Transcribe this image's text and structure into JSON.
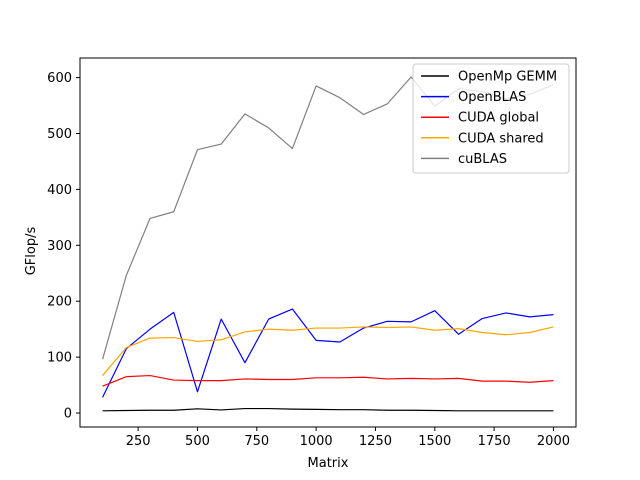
{
  "chart_data": {
    "type": "line",
    "title": "",
    "xlabel": "Matrix",
    "ylabel": "GFlop/s",
    "xlim": [
      5,
      2095
    ],
    "ylim": [
      -25,
      635
    ],
    "xticks": [
      250,
      500,
      750,
      1000,
      1250,
      1500,
      1750,
      2000
    ],
    "yticks": [
      0,
      100,
      200,
      300,
      400,
      500,
      600
    ],
    "grid": false,
    "legend_position": "upper right",
    "x": [
      100,
      200,
      300,
      400,
      500,
      600,
      700,
      800,
      900,
      1000,
      1100,
      1200,
      1300,
      1400,
      1500,
      1600,
      1700,
      1800,
      1900,
      2000
    ],
    "series": [
      {
        "name": "OpenMp GEMM",
        "color": "#000000",
        "values": [
          4,
          4.5,
          5,
          5,
          7.5,
          5.5,
          8,
          8,
          7,
          6.5,
          6,
          6,
          5,
          5,
          4.5,
          4,
          4,
          4,
          4,
          4
        ]
      },
      {
        "name": "OpenBLAS",
        "color": "#0000ff",
        "values": [
          28,
          115,
          150,
          180,
          38,
          168,
          90,
          168,
          186,
          130,
          127,
          152,
          164,
          163,
          183,
          141,
          169,
          179,
          172,
          176
        ]
      },
      {
        "name": "CUDA global",
        "color": "#ff0000",
        "values": [
          48,
          65,
          67,
          59,
          58,
          58,
          61,
          60,
          60,
          63,
          63,
          64,
          61,
          62,
          61,
          62,
          57,
          57,
          55,
          58
        ]
      },
      {
        "name": "CUDA shared",
        "color": "#ffa500",
        "values": [
          67,
          117,
          134,
          135,
          128,
          131,
          145,
          150,
          148,
          152,
          152,
          154,
          153,
          154,
          148,
          151,
          144,
          140,
          144,
          154
        ]
      },
      {
        "name": "cuBLAS",
        "color": "#808080",
        "values": [
          96,
          246,
          348,
          360,
          471,
          481,
          535,
          510,
          473,
          585,
          564,
          534,
          553,
          601,
          549,
          580,
          575,
          562,
          570,
          587
        ]
      }
    ]
  }
}
